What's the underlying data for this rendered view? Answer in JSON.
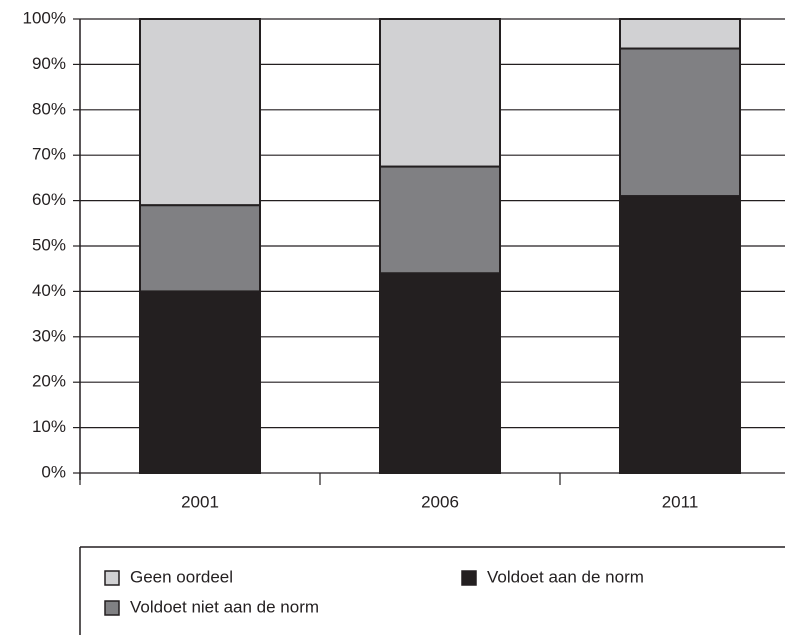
{
  "chart_data": {
    "type": "stacked_bar",
    "categories": [
      "2001",
      "2006",
      "2011"
    ],
    "series": [
      {
        "name": "Voldoet aan de norm",
        "color": "#231f20",
        "values": [
          40,
          44,
          61
        ]
      },
      {
        "name": "Voldoet niet aan de norm",
        "color": "#808083",
        "values": [
          19,
          23.5,
          32.5
        ]
      },
      {
        "name": "Geen oordeel",
        "color": "#d1d1d3",
        "values": [
          41,
          32.5,
          6.5
        ]
      }
    ],
    "ylim": [
      0,
      100
    ],
    "yticks": [
      {
        "value": 0,
        "label": "0%"
      },
      {
        "value": 10,
        "label": "10%"
      },
      {
        "value": 20,
        "label": "20%"
      },
      {
        "value": 30,
        "label": "30%"
      },
      {
        "value": 40,
        "label": "40%"
      },
      {
        "value": 50,
        "label": "50%"
      },
      {
        "value": 60,
        "label": "60%"
      },
      {
        "value": 70,
        "label": "70%"
      },
      {
        "value": 80,
        "label": "80%"
      },
      {
        "value": 90,
        "label": "90%"
      },
      {
        "value": 100,
        "label": "100%"
      }
    ],
    "grid": true
  }
}
